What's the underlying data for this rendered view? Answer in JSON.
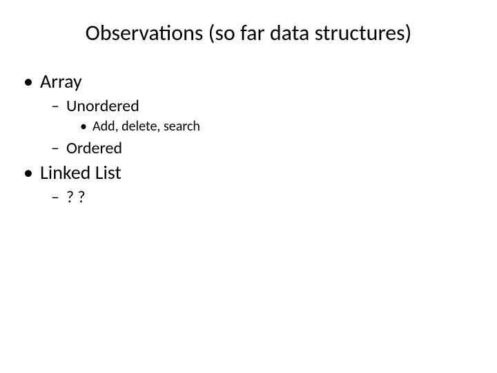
{
  "slide": {
    "title": "Observations (so far data structures)",
    "background_color": "#ffffff",
    "text_color": "#000000",
    "title_fontsize": 32,
    "body": {
      "items": [
        {
          "label": "Array",
          "fontsize": 28,
          "children": [
            {
              "label": "Unordered",
              "fontsize": 24,
              "children": [
                {
                  "label": "Add, delete, search",
                  "fontsize": 20
                }
              ]
            },
            {
              "label": "Ordered",
              "fontsize": 24
            }
          ]
        },
        {
          "label": "Linked List",
          "fontsize": 28,
          "children": [
            {
              "label": "? ?",
              "fontsize": 24
            }
          ]
        }
      ]
    }
  }
}
